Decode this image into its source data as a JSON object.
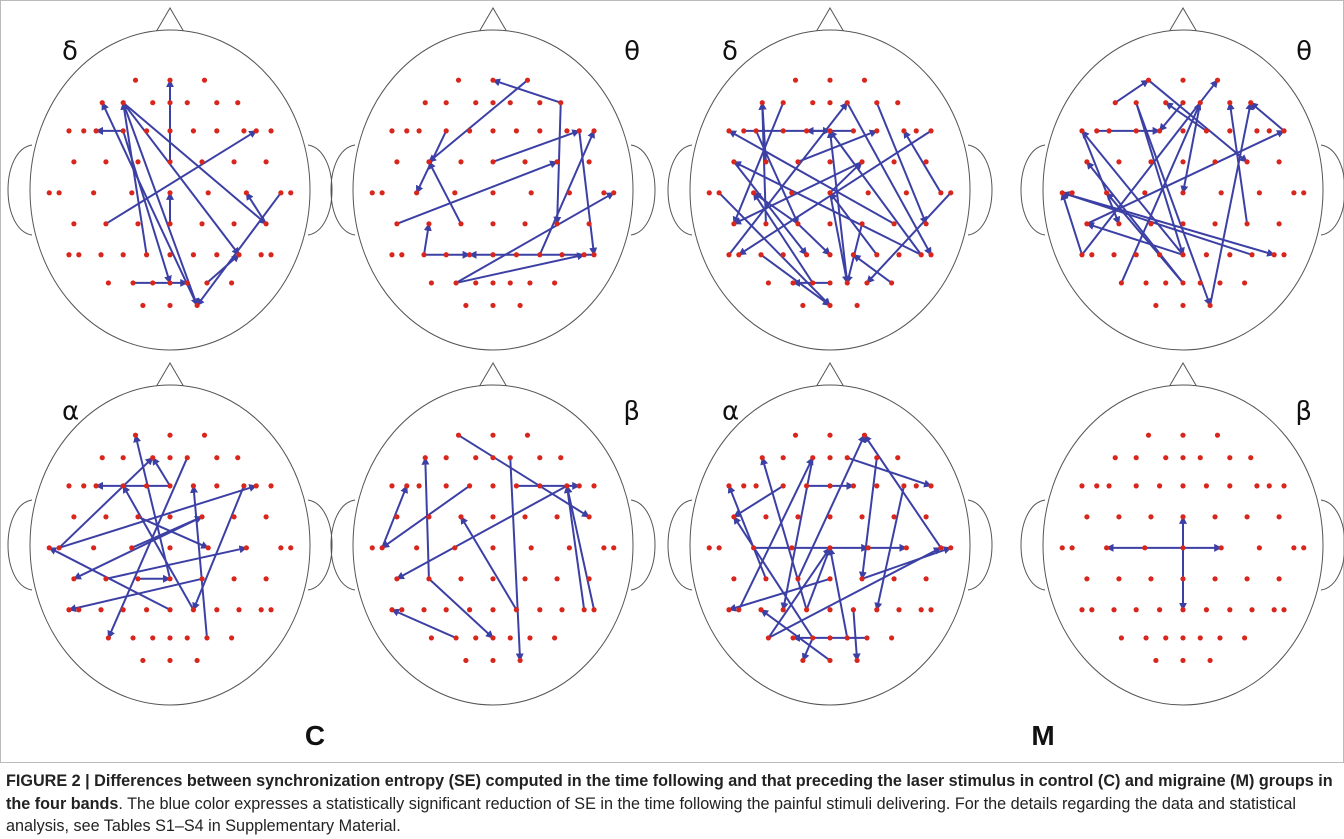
{
  "figure": {
    "groups": [
      {
        "label": "C",
        "bands": [
          "δ",
          "θ",
          "α",
          "β"
        ]
      },
      {
        "label": "M",
        "bands": [
          "δ",
          "θ",
          "α",
          "β"
        ]
      }
    ],
    "caption": {
      "title": "FIGURE 2 | Differences between synchronization entropy (SE) computed in the time following and that preceding the laser stimulus in control (C) and migraine (M) groups in the four bands",
      "text": ". The blue color expresses a statistically significant reduction of SE in the time following the painful stimuli delivering. For the details regarding the data and statistical analysis, see Tables S1–S4 in Supplementary Material."
    }
  }
}
